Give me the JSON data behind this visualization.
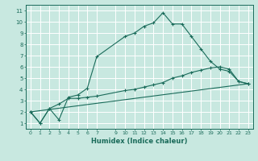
{
  "xlabel": "Humidex (Indice chaleur)",
  "bg_color": "#c8e8e0",
  "grid_color": "#ffffff",
  "line_color": "#1a6b5a",
  "xlim": [
    -0.5,
    23.5
  ],
  "ylim": [
    0.5,
    11.5
  ],
  "xticks": [
    0,
    1,
    2,
    3,
    4,
    5,
    6,
    7,
    9,
    10,
    11,
    12,
    13,
    14,
    15,
    16,
    17,
    18,
    19,
    20,
    21,
    22,
    23
  ],
  "yticks": [
    1,
    2,
    3,
    4,
    5,
    6,
    7,
    8,
    9,
    10,
    11
  ],
  "line1_x": [
    0,
    1,
    2,
    3,
    4,
    5,
    6,
    7,
    10,
    11,
    12,
    13,
    14,
    15,
    16,
    17,
    18,
    19,
    20,
    21,
    22,
    23
  ],
  "line1_y": [
    2.0,
    1.0,
    2.3,
    1.3,
    3.3,
    3.5,
    4.1,
    6.9,
    8.7,
    9.0,
    9.6,
    9.9,
    10.8,
    9.8,
    9.8,
    8.7,
    7.6,
    6.5,
    5.8,
    5.6,
    4.7,
    4.5
  ],
  "line2_x": [
    0,
    1,
    2,
    3,
    4,
    5,
    6,
    7,
    10,
    11,
    12,
    13,
    14,
    15,
    16,
    17,
    18,
    19,
    20,
    21,
    22,
    23
  ],
  "line2_y": [
    2.0,
    1.0,
    2.3,
    2.7,
    3.2,
    3.2,
    3.3,
    3.4,
    3.9,
    4.0,
    4.2,
    4.4,
    4.6,
    5.0,
    5.2,
    5.5,
    5.7,
    5.9,
    6.0,
    5.8,
    4.7,
    4.5
  ],
  "line3_x": [
    0,
    23
  ],
  "line3_y": [
    2.0,
    4.5
  ]
}
